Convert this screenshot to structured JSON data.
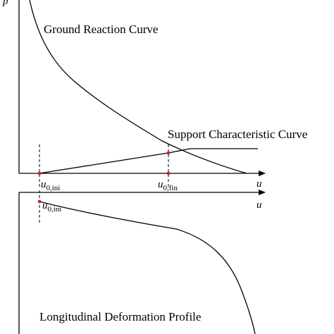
{
  "diagram": {
    "top_panel": {
      "y_axis_label": "p",
      "x_axis_label": "u",
      "ground_reaction_curve_label": "Ground Reaction Curve",
      "support_characteristic_curve_label": "Support Characteristic Curve",
      "marker_initial": {
        "symbol": "u",
        "subscript": "0,ini"
      },
      "marker_final": {
        "symbol": "u",
        "subscript": "0,fin"
      }
    },
    "bottom_panel": {
      "x_axis_label": "u",
      "longitudinal_deformation_profile_label": "Longitudinal Deformation Profile",
      "marker_initial": {
        "symbol": "u",
        "subscript": "0,ini"
      }
    },
    "colors": {
      "line": "#000000",
      "marker": "#d62020"
    }
  }
}
